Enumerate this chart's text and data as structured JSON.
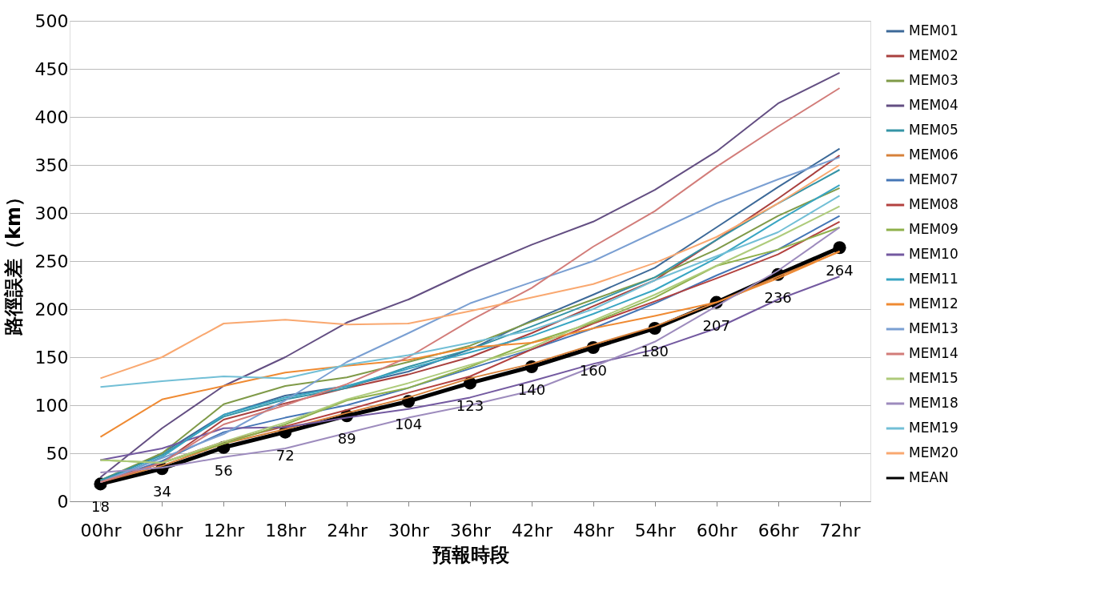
{
  "chart_data": {
    "type": "line",
    "xlabel": "預報時段",
    "ylabel": "路徑誤差（km）",
    "categories": [
      "00hr",
      "06hr",
      "12hr",
      "18hr",
      "24hr",
      "30hr",
      "36hr",
      "42hr",
      "48hr",
      "54hr",
      "60hr",
      "66hr",
      "72hr"
    ],
    "ylim": [
      0,
      500
    ],
    "yticks": [
      0,
      50,
      100,
      150,
      200,
      250,
      300,
      350,
      400,
      450,
      500
    ],
    "grid": "y",
    "legend": "right",
    "marker": "none",
    "line_style": "solid",
    "series": [
      {
        "name": "MEM01",
        "color": "#3c6998",
        "values": [
          20,
          50,
          90,
          110,
          120,
          135,
          158,
          188,
          215,
          243,
          285,
          327,
          367
        ]
      },
      {
        "name": "MEM02",
        "color": "#a9403e",
        "values": [
          20,
          40,
          85,
          102,
          118,
          132,
          150,
          175,
          203,
          230,
          272,
          315,
          360
        ]
      },
      {
        "name": "MEM03",
        "color": "#7f9a48",
        "values": [
          22,
          50,
          101,
          120,
          129,
          145,
          162,
          187,
          210,
          233,
          262,
          297,
          326
        ]
      },
      {
        "name": "MEM04",
        "color": "#634e82",
        "values": [
          25,
          76,
          120,
          150,
          186,
          210,
          240,
          267,
          291,
          324,
          364,
          414,
          446
        ]
      },
      {
        "name": "MEM05",
        "color": "#3594a6",
        "values": [
          22,
          48,
          88,
          106,
          118,
          140,
          158,
          182,
          207,
          233,
          272,
          310,
          345
        ]
      },
      {
        "name": "MEM06",
        "color": "#d7813a",
        "values": [
          20,
          37,
          60,
          75,
          92,
          108,
          128,
          143,
          163,
          182,
          207,
          234,
          260
        ]
      },
      {
        "name": "MEM07",
        "color": "#4576b6",
        "values": [
          20,
          42,
          72,
          87,
          100,
          118,
          138,
          158,
          180,
          206,
          235,
          262,
          297
        ]
      },
      {
        "name": "MEM08",
        "color": "#b3413f",
        "values": [
          20,
          40,
          62,
          78,
          95,
          113,
          130,
          158,
          185,
          208,
          232,
          257,
          291
        ]
      },
      {
        "name": "MEM09",
        "color": "#8fb04b",
        "values": [
          43,
          40,
          60,
          80,
          105,
          118,
          140,
          165,
          186,
          212,
          245,
          262,
          285
        ]
      },
      {
        "name": "MEM10",
        "color": "#7359a0",
        "values": [
          43,
          55,
          76,
          77,
          87,
          96,
          108,
          125,
          143,
          158,
          180,
          210,
          234
        ]
      },
      {
        "name": "MEM11",
        "color": "#38a5c2",
        "values": [
          20,
          46,
          90,
          108,
          120,
          138,
          155,
          172,
          195,
          220,
          253,
          292,
          329
        ]
      },
      {
        "name": "MEM12",
        "color": "#ef8a32",
        "values": [
          67,
          106,
          120,
          134,
          141,
          147,
          160,
          165,
          180,
          193,
          207,
          232,
          260
        ]
      },
      {
        "name": "MEM13",
        "color": "#7a9fd2",
        "values": [
          20,
          45,
          70,
          105,
          145,
          175,
          206,
          228,
          250,
          280,
          310,
          335,
          358
        ]
      },
      {
        "name": "MEM14",
        "color": "#d27c79",
        "values": [
          20,
          40,
          80,
          100,
          122,
          150,
          188,
          222,
          265,
          302,
          348,
          390,
          430
        ]
      },
      {
        "name": "MEM15",
        "color": "#aecb7b",
        "values": [
          43,
          40,
          62,
          82,
          106,
          123,
          142,
          160,
          188,
          215,
          245,
          275,
          307
        ]
      },
      {
        "name": "MEM18",
        "color": "#9d8bbd",
        "values": [
          30,
          35,
          46,
          55,
          71,
          87,
          100,
          115,
          140,
          166,
          203,
          240,
          285
        ]
      },
      {
        "name": "MEM19",
        "color": "#72bfd6",
        "values": [
          119,
          125,
          130,
          128,
          142,
          152,
          165,
          178,
          200,
          230,
          255,
          280,
          318
        ]
      },
      {
        "name": "MEM20",
        "color": "#f9a870",
        "values": [
          128,
          150,
          185,
          189,
          184,
          185,
          198,
          212,
          226,
          248,
          275,
          310,
          350
        ]
      },
      {
        "name": "MEAN",
        "color": "#000000",
        "marker": "circle",
        "values": [
          18,
          34,
          56,
          72,
          89,
          104,
          123,
          140,
          160,
          180,
          207,
          236,
          264
        ],
        "value_labels": [
          "18",
          "34",
          "56",
          "72",
          "89",
          "104",
          "123",
          "140",
          "160",
          "180",
          "207",
          "236",
          "264"
        ]
      }
    ]
  }
}
